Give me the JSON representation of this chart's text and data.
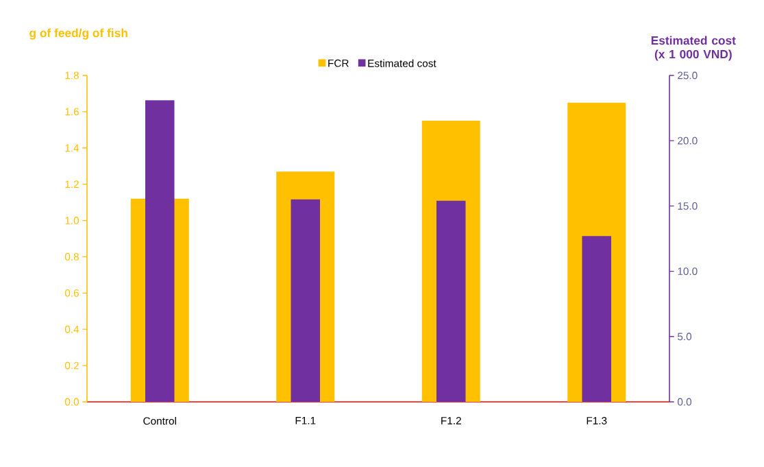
{
  "chart_data": {
    "type": "bar",
    "categories": [
      "Control",
      "F1.1",
      "F1.2",
      "F1.3"
    ],
    "series": [
      {
        "name": "FCR",
        "color": "#ffc000",
        "values": [
          1.12,
          1.27,
          1.55,
          1.65
        ]
      },
      {
        "name": "Estimated cost",
        "color": "#7030a0",
        "axis": "y2",
        "values": [
          23.1,
          15.5,
          15.4,
          12.7
        ]
      }
    ],
    "ylabel": "g of feed/g of fish",
    "y2label": "Estimated cost (x 1 000 VND)",
    "ylim": [
      0,
      1.8
    ],
    "yticks": [
      {
        "value": 0,
        "label": "0.0"
      },
      {
        "value": 0.2,
        "label": "0.2"
      },
      {
        "value": 0.4,
        "label": "0.4"
      },
      {
        "value": 0.6,
        "label": "0.6"
      },
      {
        "value": 0.8,
        "label": "0.8"
      },
      {
        "value": 1,
        "label": "1.0"
      },
      {
        "value": 1.2,
        "label": "1.2"
      },
      {
        "value": 1.4,
        "label": "1.4"
      },
      {
        "value": 1.6,
        "label": "1.6"
      },
      {
        "value": 1.8,
        "label": "1.8"
      }
    ],
    "y2lim": [
      0,
      25
    ],
    "y2ticks": [
      {
        "value": 0,
        "label": "0.0"
      },
      {
        "value": 5,
        "label": "5.0"
      },
      {
        "value": 10,
        "label": "10.0"
      },
      {
        "value": 15,
        "label": "15.0"
      },
      {
        "value": 20,
        "label": "20.0"
      },
      {
        "value": 25,
        "label": "25.0"
      }
    ],
    "legend": "top",
    "grid": false
  }
}
